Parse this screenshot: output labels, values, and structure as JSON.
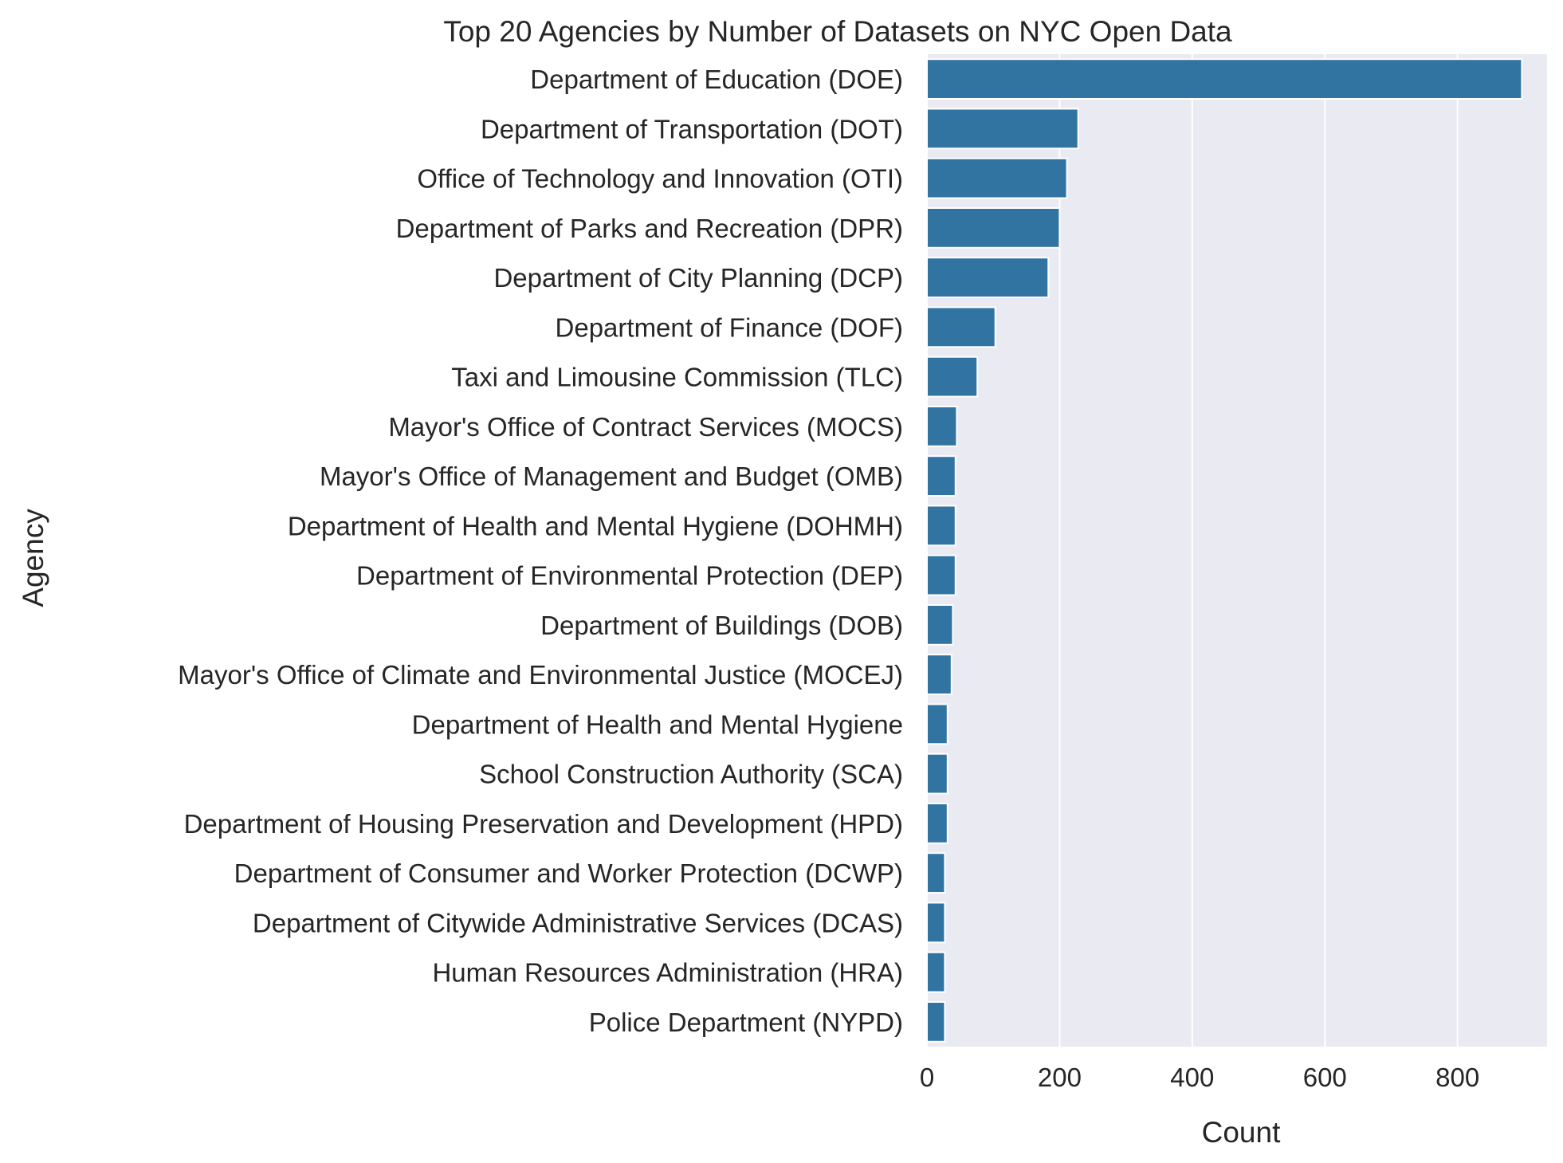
{
  "chart_data": {
    "type": "bar",
    "orientation": "horizontal",
    "title": "Top 20 Agencies by Number of Datasets on NYC Open Data",
    "xlabel": "Count",
    "ylabel": "Agency",
    "xlim": [
      0,
      935
    ],
    "xticks": [
      0,
      200,
      400,
      600,
      800
    ],
    "grid": true,
    "bar_color": "#3274a1",
    "background_color": "#eaeaf2",
    "grid_color": "#ffffff",
    "categories": [
      "Department of Education (DOE)",
      "Department of Transportation (DOT)",
      "Office of Technology and Innovation (OTI)",
      "Department of Parks and Recreation (DPR)",
      "Department of City Planning (DCP)",
      "Department of Finance (DOF)",
      "Taxi and Limousine Commission (TLC)",
      "Mayor's Office of Contract Services (MOCS)",
      "Mayor's Office of Management and Budget (OMB)",
      "Department of Health and Mental Hygiene (DOHMH)",
      "Department of Environmental Protection (DEP)",
      "Department of Buildings (DOB)",
      "Mayor's Office of Climate and Environmental Justice (MOCEJ)",
      "Department of Health and Mental Hygiene",
      "School Construction Authority (SCA)",
      "Department of Housing Preservation and Development (HPD)",
      "Department of Consumer and Worker Protection (DCWP)",
      "Department of Citywide Administrative Services (DCAS)",
      "Human Resources Administration (HRA)",
      "Police Department (NYPD)"
    ],
    "values": [
      897,
      228,
      211,
      200,
      183,
      103,
      76,
      45,
      43,
      43,
      43,
      39,
      37,
      31,
      31,
      31,
      27,
      27,
      27,
      27
    ]
  }
}
